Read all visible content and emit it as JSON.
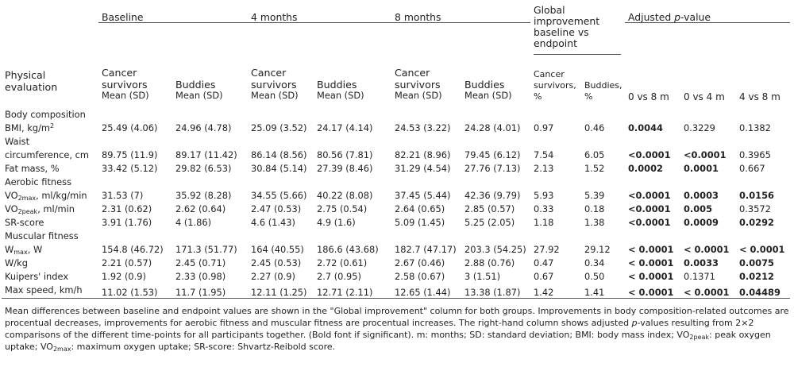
{
  "headers": {
    "baseline": "Baseline",
    "m4": "4 months",
    "m8": "8 months",
    "global": "Global improvement baseline vs endpoint",
    "adjusted_prefix": "Adjusted ",
    "adjusted_p": "p",
    "adjusted_suffix": "-value",
    "physical": "Physical evaluation",
    "cancer": "Cancer survivors",
    "buddies": "Buddies",
    "mean_sd": "Mean (SD)",
    "cancer_pct": "Cancer survivors, %",
    "buddies_pct": "Buddies, %",
    "p1": "0 vs 8 m",
    "p2": "0 vs 4 m",
    "p3": "4 vs 8 m"
  },
  "sections": {
    "body": "Body composition",
    "aerobic": "Aerobic fitness",
    "muscular": "Muscular fitness"
  },
  "rows": [
    {
      "label": "BMI, kg/m",
      "sup": "2",
      "b_c": "25.49 (4.06)",
      "b_b": "24.96 (4.78)",
      "m4_c": "25.09 (3.52)",
      "m4_b": "24.17 (4.14)",
      "m8_c": "24.53 (3.22)",
      "m8_b": "24.28 (4.01)",
      "g_c": "0.97",
      "g_b": "0.46",
      "p1": "0.0044",
      "p2": "0.3229",
      "p3": "0.1382"
    },
    {
      "label_top": "Waist",
      "label": "circumference, cm",
      "b_c": "89.75 (11.9)",
      "b_b": "89.17 (11.42)",
      "m4_c": "86.14 (8.56)",
      "m4_b": "80.56 (7.81)",
      "m8_c": "82.21 (8.96)",
      "m8_b": "79.45 (6.12)",
      "g_c": "7.54",
      "g_b": "6.05",
      "p1": "<0.0001",
      "p2": "<0.0001",
      "p3": "0.3965"
    },
    {
      "label": "Fat mass, %",
      "b_c": "33.42 (5.12)",
      "b_b": "29.82 (6.53)",
      "m4_c": "30.84 (5.14)",
      "m4_b": "27.39 (8.46)",
      "m8_c": "31.29 (4.54)",
      "m8_b": "27.76 (7.13)",
      "g_c": "2.13",
      "g_b": "1.52",
      "p1": "0.0002",
      "p2": "0.0001",
      "p3": "0.667"
    },
    {
      "label": "VO",
      "sub": "2max",
      "label_rest": ", ml/kg/min",
      "b_c": "31.53 (7)",
      "b_b": "35.92 (8.28)",
      "m4_c": "34.55 (5.66)",
      "m4_b": "40.22 (8.08)",
      "m8_c": "37.45 (5.44)",
      "m8_b": "42.36 (9.79)",
      "g_c": "5.93",
      "g_b": "5.39",
      "p1": "<0.0001",
      "p2": "0.0003",
      "p3": "0.0156"
    },
    {
      "label": "VO",
      "sub": "2peak",
      "label_rest": ", ml/min",
      "b_c": "2.31 (0.62)",
      "b_b": "2.62 (0.64)",
      "m4_c": "2.47 (0.53)",
      "m4_b": "2.75 (0.54)",
      "m8_c": "2.64 (0.65)",
      "m8_b": "2.85 (0.57)",
      "g_c": "0.33",
      "g_b": "0.18",
      "p1": "<0.0001",
      "p2": "0.005",
      "p3": "0.3572"
    },
    {
      "label": "SR-score",
      "b_c": "3.91 (1.76)",
      "b_b": "4 (1.86)",
      "m4_c": "4.6 (1.43)",
      "m4_b": "4.9 (1.6)",
      "m8_c": "5.09 (1.45)",
      "m8_b": "5.25 (2.05)",
      "g_c": "1.18",
      "g_b": "1.38",
      "p1": "<0.0001",
      "p2": "0.0009",
      "p3": "0.0292"
    },
    {
      "label": "W",
      "sub": "max",
      "label_rest": ", W",
      "b_c": "154.8 (46.72)",
      "b_b": "171.3 (51.77)",
      "m4_c": "164 (40.55)",
      "m4_b": "186.6 (43.68)",
      "m8_c": "182.7 (47.17)",
      "m8_b": "203.3 (54.25)",
      "g_c": "27.92",
      "g_b": "29.12",
      "p1": "< 0.0001",
      "p2": "< 0.0001",
      "p3": "< 0.0001"
    },
    {
      "label": "W/kg",
      "b_c": "2.21 (0.57)",
      "b_b": "2.45 (0.71)",
      "m4_c": "2.45 (0.53)",
      "m4_b": "2.72 (0.61)",
      "m8_c": "2.67 (0.46)",
      "m8_b": "2.88 (0.76)",
      "g_c": "0.47",
      "g_b": "0.34",
      "p1": "< 0.0001",
      "p2": "0.0033",
      "p3": "0.0075"
    },
    {
      "label": "Kuipers' index",
      "b_c": "1.92 (0.9)",
      "b_b": "2.33 (0.98)",
      "m4_c": "2.27 (0.9)",
      "m4_b": "2.7 (0.95)",
      "m8_c": "2.58 (0.67)",
      "m8_b": "3 (1.51)",
      "g_c": "0.67",
      "g_b": "0.50",
      "p1": "< 0.0001",
      "p2": "0.1371",
      "p3": "0.0212"
    },
    {
      "label": "Max speed, km/h",
      "b_c": "11.02 (1.53)",
      "b_b": "11.7 (1.95)",
      "m4_c": "12.11 (1.25)",
      "m4_b": "12.71 (2.11)",
      "m8_c": "12.65 (1.44)",
      "m8_b": "13.38 (1.87)",
      "g_c": "1.42",
      "g_b": "1.41",
      "p1": "< 0.0001",
      "p2": "< 0.0001",
      "p3": "0.04489"
    }
  ],
  "note": {
    "s1": "Mean differences between baseline and endpoint values are shown in the \"Global improvement\" column for both groups. Improvements in body composition-related outcomes are procentual decreases, improvements for aerobic fitness and muscular fitness are procentual increases. The right-hand column shows adjusted ",
    "p": "p",
    "s2": "-values resulting from 2×2 comparisons of the different time-points for all participants together. (Bold font if significant). m: months; SD: standard deviation; BMI: body mass index; VO",
    "sub1": "2peak",
    "s3": ": peak oxygen uptake; VO",
    "sub2": "2max",
    "s4": ": maximum oxygen uptake; SR-score: Shvartz-Reibold score."
  }
}
